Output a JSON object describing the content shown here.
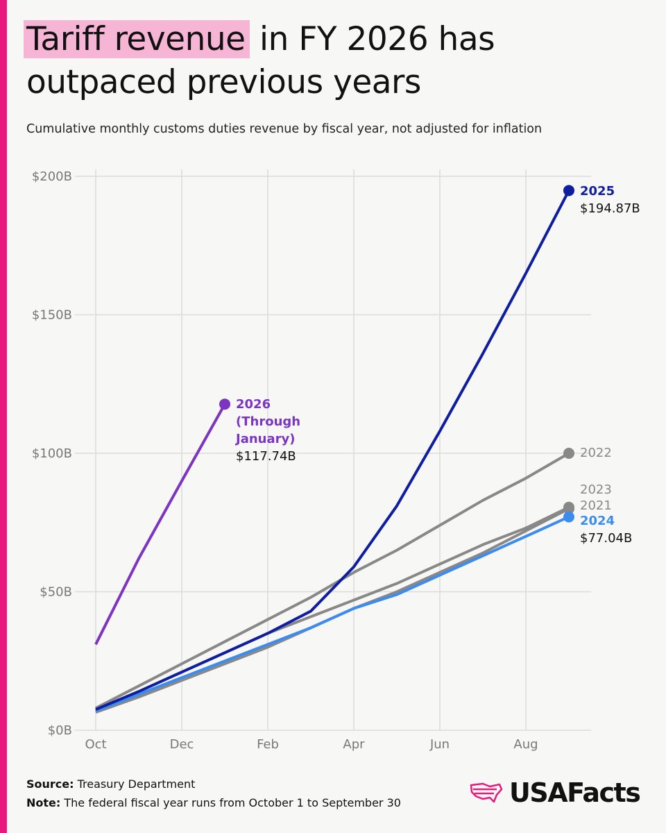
{
  "title_highlight": "Tariff revenue",
  "title_rest": "in FY 2026 has outpaced previous years",
  "subtitle": "Cumulative monthly customs duties revenue by fiscal year, not adjusted for inflation",
  "chart_data": {
    "type": "line",
    "categories": [
      "Oct",
      null,
      "Dec",
      null,
      "Feb",
      null,
      "Apr",
      null,
      "Jun",
      null,
      "Aug",
      null
    ],
    "ylim": [
      0,
      200
    ],
    "yticks": [
      {
        "value": 0,
        "label": "$0B"
      },
      {
        "value": 50,
        "label": "$50B"
      },
      {
        "value": 100,
        "label": "$100B"
      },
      {
        "value": 150,
        "label": "$150B"
      },
      {
        "value": 200,
        "label": "$200B"
      }
    ],
    "grid": true,
    "series": [
      {
        "name": "2021",
        "color": "#888888",
        "values": [
          6.5,
          12,
          18,
          24,
          30,
          37,
          44,
          50,
          57,
          64,
          72,
          80
        ]
      },
      {
        "name": "2022",
        "color": "#888888",
        "values": [
          8,
          16,
          24,
          32,
          40,
          48,
          57,
          65,
          74,
          83,
          91,
          100
        ]
      },
      {
        "name": "2023",
        "color": "#888888",
        "values": [
          7,
          14,
          21,
          28,
          35,
          41,
          47,
          53,
          60,
          67,
          73,
          80.5
        ]
      },
      {
        "name": "2024",
        "color": "#3c8cf0",
        "values": [
          7,
          13,
          19,
          25,
          31,
          37,
          44,
          49,
          56,
          63,
          70,
          77.04
        ],
        "value_labels": [
          null,
          null,
          null,
          null,
          null,
          null,
          null,
          null,
          null,
          null,
          null,
          "$77.04B"
        ]
      },
      {
        "name": "2025",
        "color": "#0f1ea0",
        "values": [
          7.5,
          14,
          21,
          28,
          35,
          43,
          59,
          81,
          108,
          136,
          165,
          194.87
        ],
        "value_labels": [
          null,
          null,
          null,
          null,
          null,
          null,
          null,
          null,
          null,
          null,
          null,
          "$194.87B"
        ]
      },
      {
        "name": "2026",
        "note": "(Through January)",
        "color": "#7b35c1",
        "values": [
          31,
          62,
          90,
          117.74,
          null,
          null,
          null,
          null,
          null,
          null,
          null,
          null
        ],
        "value_labels": [
          null,
          null,
          null,
          "$117.74B",
          null,
          null,
          null,
          null,
          null,
          null,
          null,
          null
        ]
      }
    ]
  },
  "footer": {
    "source_label": "Source:",
    "source": "Treasury Department",
    "note_label": "Note:",
    "note": "The federal fiscal year runs from October 1 to September 30"
  },
  "logo": "USAFacts"
}
